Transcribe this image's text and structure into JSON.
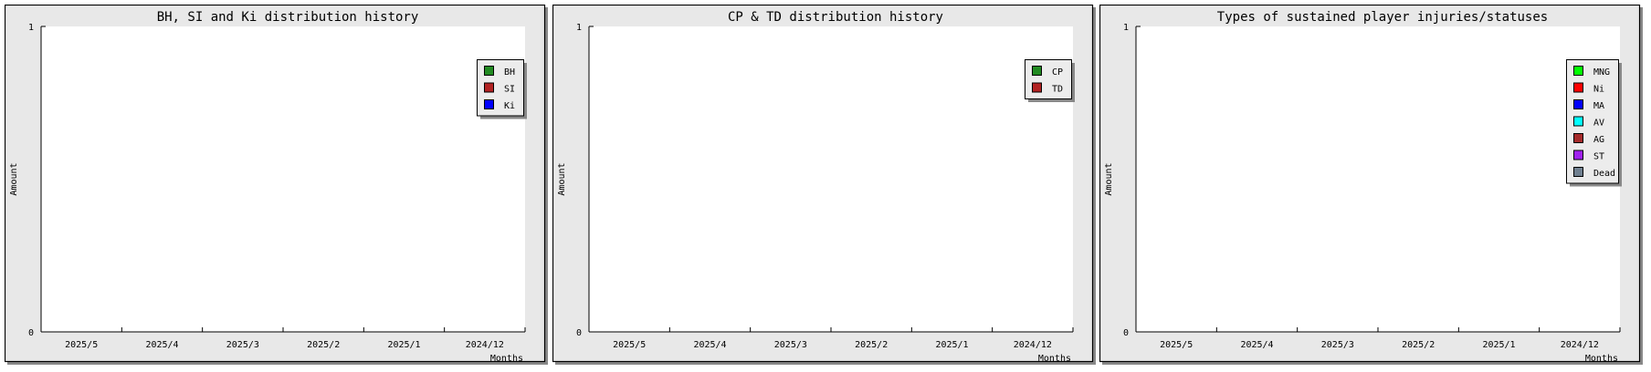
{
  "chart_data": [
    {
      "type": "bar",
      "title": "BH, SI and Ki distribution history",
      "xlabel": "Months",
      "ylabel": "Amount",
      "categories": [
        "2025/5",
        "2025/4",
        "2025/3",
        "2025/2",
        "2025/1",
        "2024/12"
      ],
      "ylim": [
        0,
        1
      ],
      "yticks": [
        "0",
        "1"
      ],
      "legend_placement": "right",
      "series": [
        {
          "name": "BH",
          "color": "#228b22",
          "values": [
            0,
            0,
            0,
            0,
            0,
            0
          ]
        },
        {
          "name": "SI",
          "color": "#b22222",
          "values": [
            0,
            0,
            0,
            0,
            0,
            0
          ]
        },
        {
          "name": "Ki",
          "color": "#0000ff",
          "values": [
            0,
            0,
            0,
            0,
            0,
            0
          ]
        }
      ]
    },
    {
      "type": "bar",
      "title": "CP & TD distribution history",
      "xlabel": "Months",
      "ylabel": "Amount",
      "categories": [
        "2025/5",
        "2025/4",
        "2025/3",
        "2025/2",
        "2025/1",
        "2024/12"
      ],
      "ylim": [
        0,
        1
      ],
      "yticks": [
        "0",
        "1"
      ],
      "legend_placement": "right",
      "series": [
        {
          "name": "CP",
          "color": "#228b22",
          "values": [
            0,
            0,
            0,
            0,
            0,
            0
          ]
        },
        {
          "name": "TD",
          "color": "#b22222",
          "values": [
            0,
            0,
            0,
            0,
            0,
            0
          ]
        }
      ]
    },
    {
      "type": "bar",
      "title": "Types of sustained player injuries/statuses",
      "xlabel": "Months",
      "ylabel": "Amount",
      "categories": [
        "2025/5",
        "2025/4",
        "2025/3",
        "2025/2",
        "2025/1",
        "2024/12"
      ],
      "ylim": [
        0,
        1
      ],
      "yticks": [
        "0",
        "1"
      ],
      "legend_placement": "right",
      "series": [
        {
          "name": "MNG",
          "color": "#00ff00",
          "values": [
            0,
            0,
            0,
            0,
            0,
            0
          ]
        },
        {
          "name": "Ni",
          "color": "#ff0000",
          "values": [
            0,
            0,
            0,
            0,
            0,
            0
          ]
        },
        {
          "name": "MA",
          "color": "#0000ff",
          "values": [
            0,
            0,
            0,
            0,
            0,
            0
          ]
        },
        {
          "name": "AV",
          "color": "#00ffff",
          "values": [
            0,
            0,
            0,
            0,
            0,
            0
          ]
        },
        {
          "name": "AG",
          "color": "#a52a2a",
          "values": [
            0,
            0,
            0,
            0,
            0,
            0
          ]
        },
        {
          "name": "ST",
          "color": "#a020f0",
          "values": [
            0,
            0,
            0,
            0,
            0,
            0
          ]
        },
        {
          "name": "Dead",
          "color": "#708090",
          "values": [
            0,
            0,
            0,
            0,
            0,
            0
          ]
        }
      ]
    }
  ],
  "colors": {
    "panel_bg": "#e8e8e8",
    "plot_bg": "#ffffff",
    "border": "#000000",
    "shadow": "#888888"
  }
}
